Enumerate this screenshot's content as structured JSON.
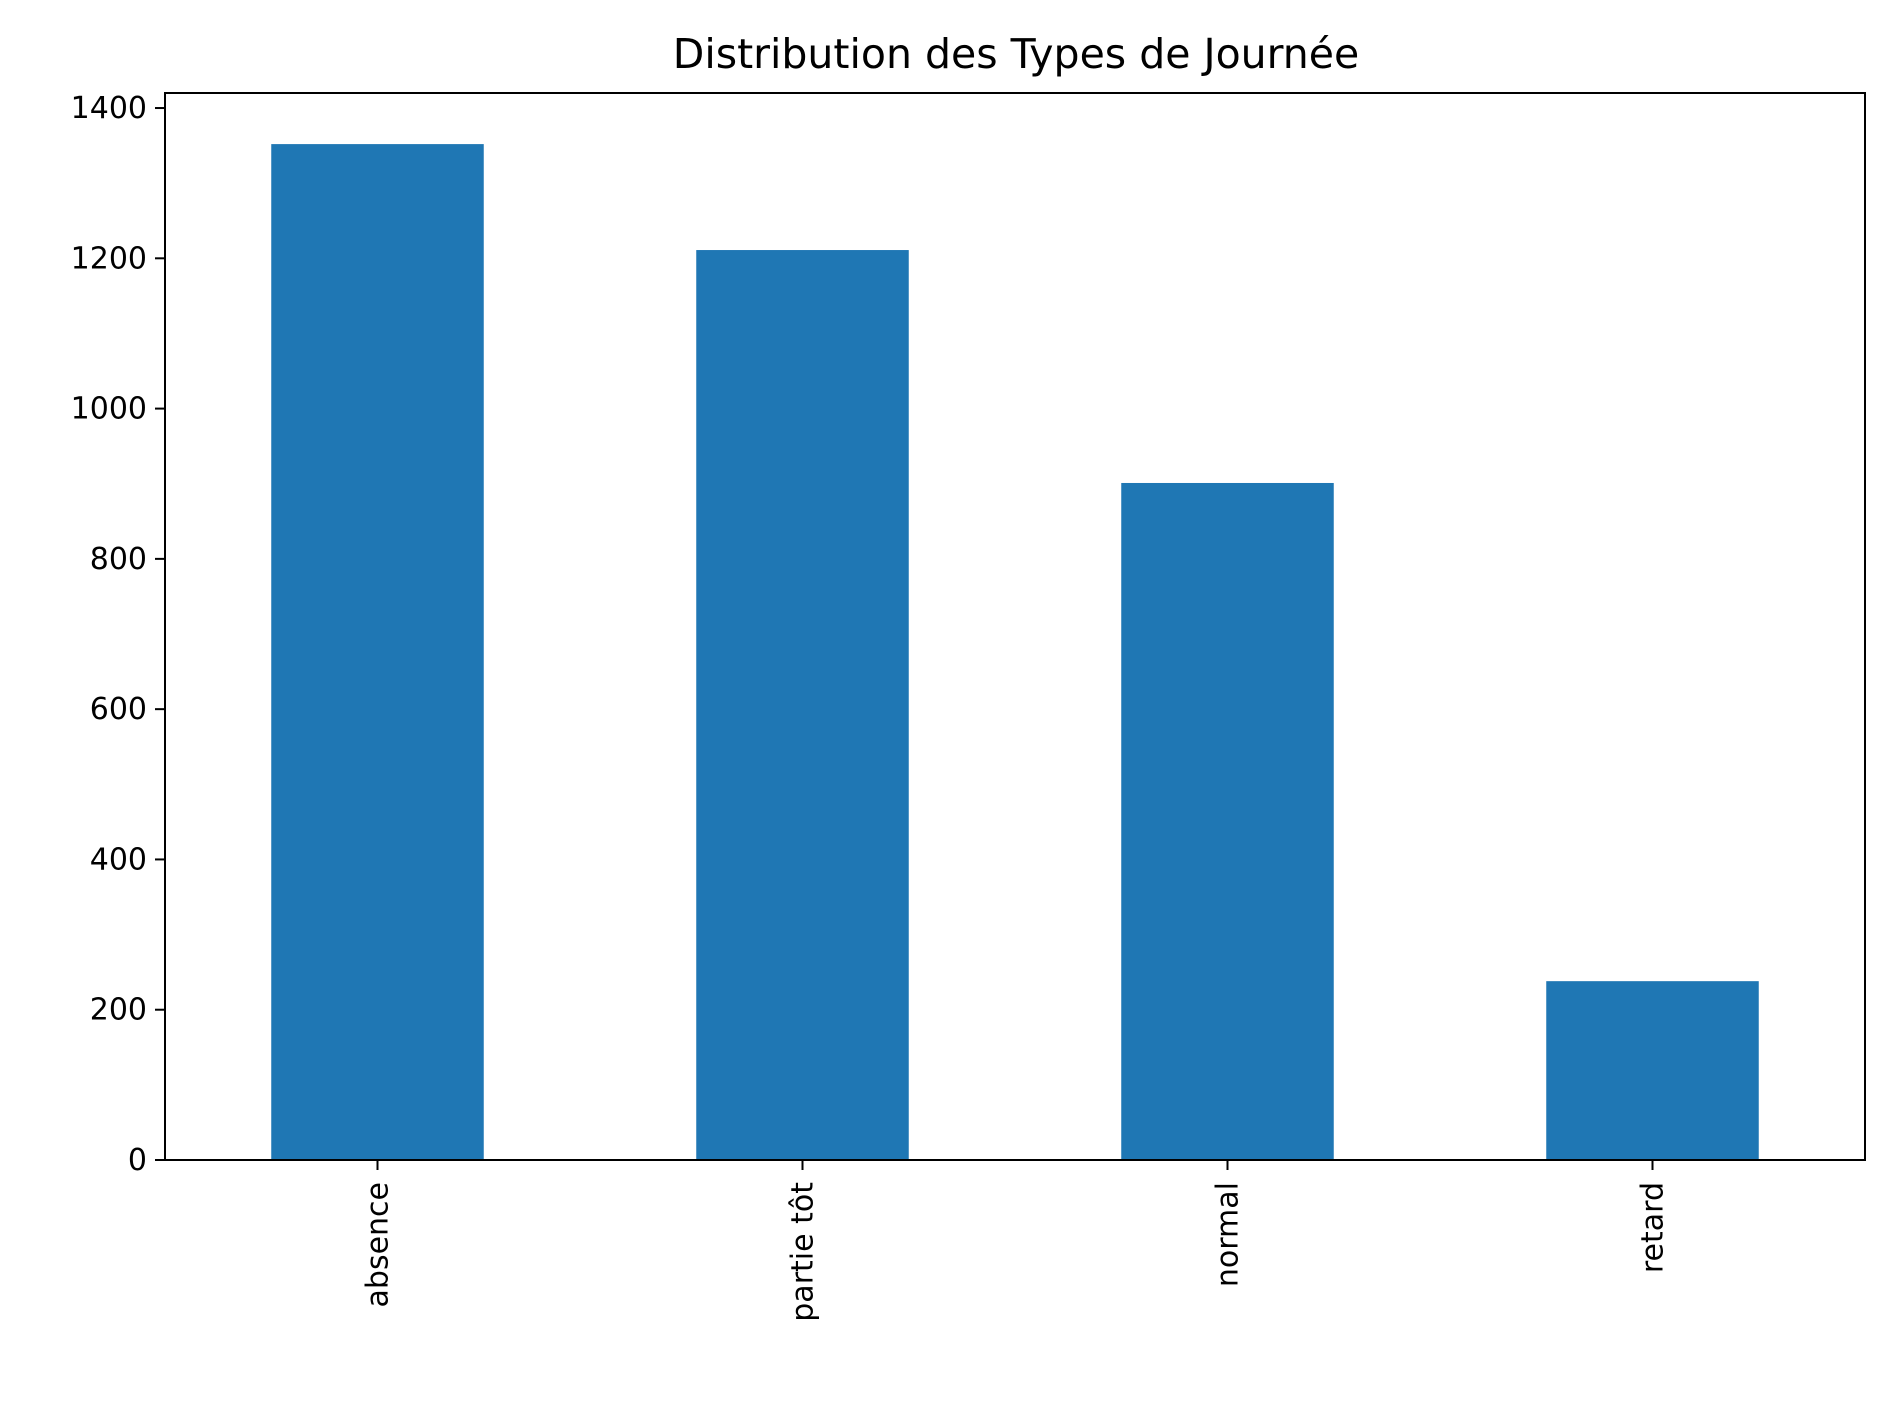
{
  "chart_data": {
    "type": "bar",
    "title": "Distribution des Types de Journée",
    "xlabel": "",
    "ylabel": "",
    "categories": [
      "absence",
      "partie tôt",
      "normal",
      "retard"
    ],
    "values": [
      1352,
      1211,
      901,
      238
    ],
    "ylim": [
      0,
      1420
    ],
    "yticks": [
      0,
      200,
      400,
      600,
      800,
      1000,
      1200,
      1400
    ],
    "grid": false,
    "legend": "none",
    "bar_color": "#1f77b4"
  }
}
